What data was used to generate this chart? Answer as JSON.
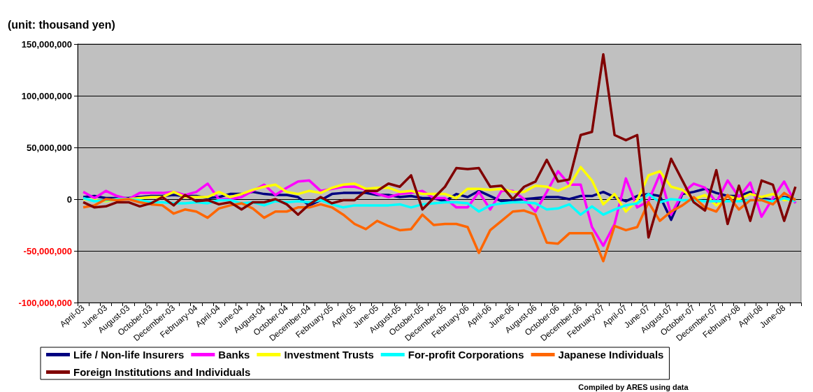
{
  "chart_data": {
    "type": "line",
    "ylabel": "(unit: thousand yen)",
    "annotations": [
      "Compiled by ARES using data"
    ],
    "categories": [
      "April-03",
      null,
      "June-03",
      null,
      "August-03",
      null,
      "October-03",
      null,
      "December-03",
      null,
      "February-04",
      null,
      "April-04",
      null,
      "June-04",
      null,
      "August-04",
      null,
      "October-04",
      null,
      "December-04",
      null,
      "February-05",
      null,
      "April-05",
      null,
      "June-05",
      null,
      "August-05",
      null,
      "October-05",
      null,
      "December-05",
      null,
      "February-06",
      null,
      "April-06",
      null,
      "June-06",
      null,
      "August-06",
      null,
      "October-06",
      null,
      "December-06",
      null,
      "February-07",
      null,
      "April-07",
      null,
      "June-07",
      null,
      "August-07",
      null,
      "October-07",
      null,
      "December-07",
      null,
      "February-08",
      null,
      "April-08",
      null,
      "June-08",
      null
    ],
    "series": [
      {
        "name": "Life / Non-life Insurers",
        "color": "#000080",
        "values": [
          2000000,
          3000000,
          1000000,
          1000000,
          1000000,
          2000000,
          3000000,
          3000000,
          4000000,
          3000000,
          3000000,
          1000000,
          2000000,
          5000000,
          5000000,
          7000000,
          5000000,
          4000000,
          4000000,
          2000000,
          -6000000,
          -1000000,
          5000000,
          6000000,
          6000000,
          6000000,
          4000000,
          4000000,
          2000000,
          3000000,
          1000000,
          1000000,
          -2000000,
          5000000,
          2000000,
          8000000,
          3000000,
          -2000000,
          -1000000,
          0,
          1000000,
          2000000,
          2000000,
          0,
          3000000,
          3000000,
          7000000,
          2000000,
          -2000000,
          3000000,
          5000000,
          3000000,
          -20000000,
          5000000,
          7000000,
          10000000,
          6000000,
          3000000,
          3000000,
          7000000,
          1000000,
          -1000000,
          2000000,
          0
        ]
      },
      {
        "name": "Banks",
        "color": "#ff00ff",
        "values": [
          7000000,
          1000000,
          8000000,
          3000000,
          0,
          6000000,
          6000000,
          6000000,
          7000000,
          4000000,
          7000000,
          15000000,
          0,
          0,
          2000000,
          8000000,
          14000000,
          4000000,
          11000000,
          17000000,
          18000000,
          8000000,
          10000000,
          12000000,
          12000000,
          9000000,
          5000000,
          2000000,
          5000000,
          6000000,
          8000000,
          1000000,
          1000000,
          -8000000,
          -8000000,
          7000000,
          -10000000,
          8000000,
          8000000,
          0,
          -12000000,
          7000000,
          27000000,
          14000000,
          14000000,
          -27000000,
          -45000000,
          -24000000,
          20000000,
          -8000000,
          -2000000,
          24000000,
          -15000000,
          6000000,
          15000000,
          11000000,
          -3000000,
          18000000,
          2000000,
          16000000,
          -17000000,
          1000000,
          17000000,
          -4000000
        ]
      },
      {
        "name": "Investment Trusts",
        "color": "#ffff00",
        "values": [
          0,
          -1000000,
          -2000000,
          0,
          0,
          1000000,
          2000000,
          2000000,
          7000000,
          2000000,
          2000000,
          2000000,
          7000000,
          2000000,
          5000000,
          9000000,
          12000000,
          14000000,
          7000000,
          5000000,
          8000000,
          6000000,
          11000000,
          14000000,
          15000000,
          10000000,
          11000000,
          11000000,
          7000000,
          8000000,
          5000000,
          5000000,
          5000000,
          1000000,
          10000000,
          10000000,
          9000000,
          10000000,
          7000000,
          7000000,
          13000000,
          12000000,
          8000000,
          13000000,
          31000000,
          18000000,
          -5000000,
          5000000,
          -12000000,
          -1000000,
          23000000,
          27000000,
          12000000,
          9000000,
          0,
          4000000,
          -6000000,
          3000000,
          0,
          5000000,
          2000000,
          5000000,
          -1000000,
          0
        ]
      },
      {
        "name": "For-profit Corporations",
        "color": "#00ffff",
        "values": [
          1000000,
          -2000000,
          -1000000,
          0,
          0,
          -1000000,
          -3000000,
          -3000000,
          -4000000,
          -4000000,
          -3000000,
          -4000000,
          -1000000,
          -1000000,
          -4000000,
          -3000000,
          -6000000,
          -2000000,
          -3000000,
          -2000000,
          -3000000,
          -1000000,
          -5000000,
          -8000000,
          -6000000,
          -6000000,
          -6000000,
          -6000000,
          -5000000,
          -8000000,
          -5000000,
          -4000000,
          -3000000,
          -3000000,
          -4000000,
          -12000000,
          -6000000,
          -4000000,
          -3000000,
          -3000000,
          -4000000,
          -10000000,
          -9000000,
          -5000000,
          -15000000,
          -7000000,
          -15000000,
          -10000000,
          -6000000,
          -4000000,
          5000000,
          -3000000,
          0,
          -1000000,
          -1000000,
          -2000000,
          -2000000,
          -2000000,
          -2000000,
          -1000000,
          -1000000,
          -2000000,
          1000000,
          -2000000
        ]
      },
      {
        "name": "Japanese Individuals",
        "color": "#ff6600",
        "values": [
          -8000000,
          -6000000,
          0,
          -1000000,
          0,
          -3000000,
          -5000000,
          -6000000,
          -14000000,
          -10000000,
          -12000000,
          -18000000,
          -9000000,
          -6000000,
          -4000000,
          -9000000,
          -18000000,
          -12000000,
          -12000000,
          -8000000,
          -8000000,
          -5000000,
          -8000000,
          -15000000,
          -24000000,
          -29000000,
          -21000000,
          -26000000,
          -30000000,
          -29000000,
          -15000000,
          -25000000,
          -24000000,
          -24000000,
          -27000000,
          -52000000,
          -30000000,
          -21000000,
          -12000000,
          -11000000,
          -15000000,
          -42000000,
          -43000000,
          -33000000,
          -33000000,
          -33000000,
          -60000000,
          -26000000,
          -30000000,
          -27000000,
          -3000000,
          -21000000,
          -12000000,
          -6000000,
          2000000,
          -8000000,
          -12000000,
          4000000,
          -10000000,
          -1000000,
          -1000000,
          -5000000,
          6000000,
          -1000000
        ]
      },
      {
        "name": "Foreign Institutions and Individuals",
        "color": "#800000",
        "values": [
          -3000000,
          -8000000,
          -7000000,
          -3000000,
          -3000000,
          -7000000,
          -4000000,
          2000000,
          -6000000,
          4000000,
          -2000000,
          -1000000,
          -5000000,
          -3000000,
          -10000000,
          -3000000,
          -3000000,
          0,
          -5000000,
          -15000000,
          -5000000,
          2000000,
          -4000000,
          -1000000,
          -1000000,
          8000000,
          8000000,
          15000000,
          12000000,
          23000000,
          -10000000,
          1000000,
          12000000,
          30000000,
          29000000,
          30000000,
          12000000,
          13000000,
          0,
          12000000,
          17000000,
          38000000,
          17000000,
          19000000,
          62000000,
          65000000,
          140000000,
          62000000,
          57000000,
          62000000,
          -37000000,
          1000000,
          39000000,
          18000000,
          -3000000,
          -11000000,
          28000000,
          -24000000,
          13000000,
          -21000000,
          18000000,
          14000000,
          -21000000,
          12000000
        ]
      }
    ],
    "ylim": [
      -100000000,
      150000000
    ],
    "yticks": [
      {
        "value": -100000000,
        "label": "-100,000,000"
      },
      {
        "value": -50000000,
        "label": "-50,000,000"
      },
      0,
      {
        "value": 50000000,
        "label": "50,000,000"
      },
      {
        "value": 100000000,
        "label": "100,000,000"
      },
      {
        "value": 150000000,
        "label": "150,000,000"
      }
    ],
    "grid": "y",
    "legend": "bottom",
    "marker": "none",
    "line_style": "solid"
  }
}
